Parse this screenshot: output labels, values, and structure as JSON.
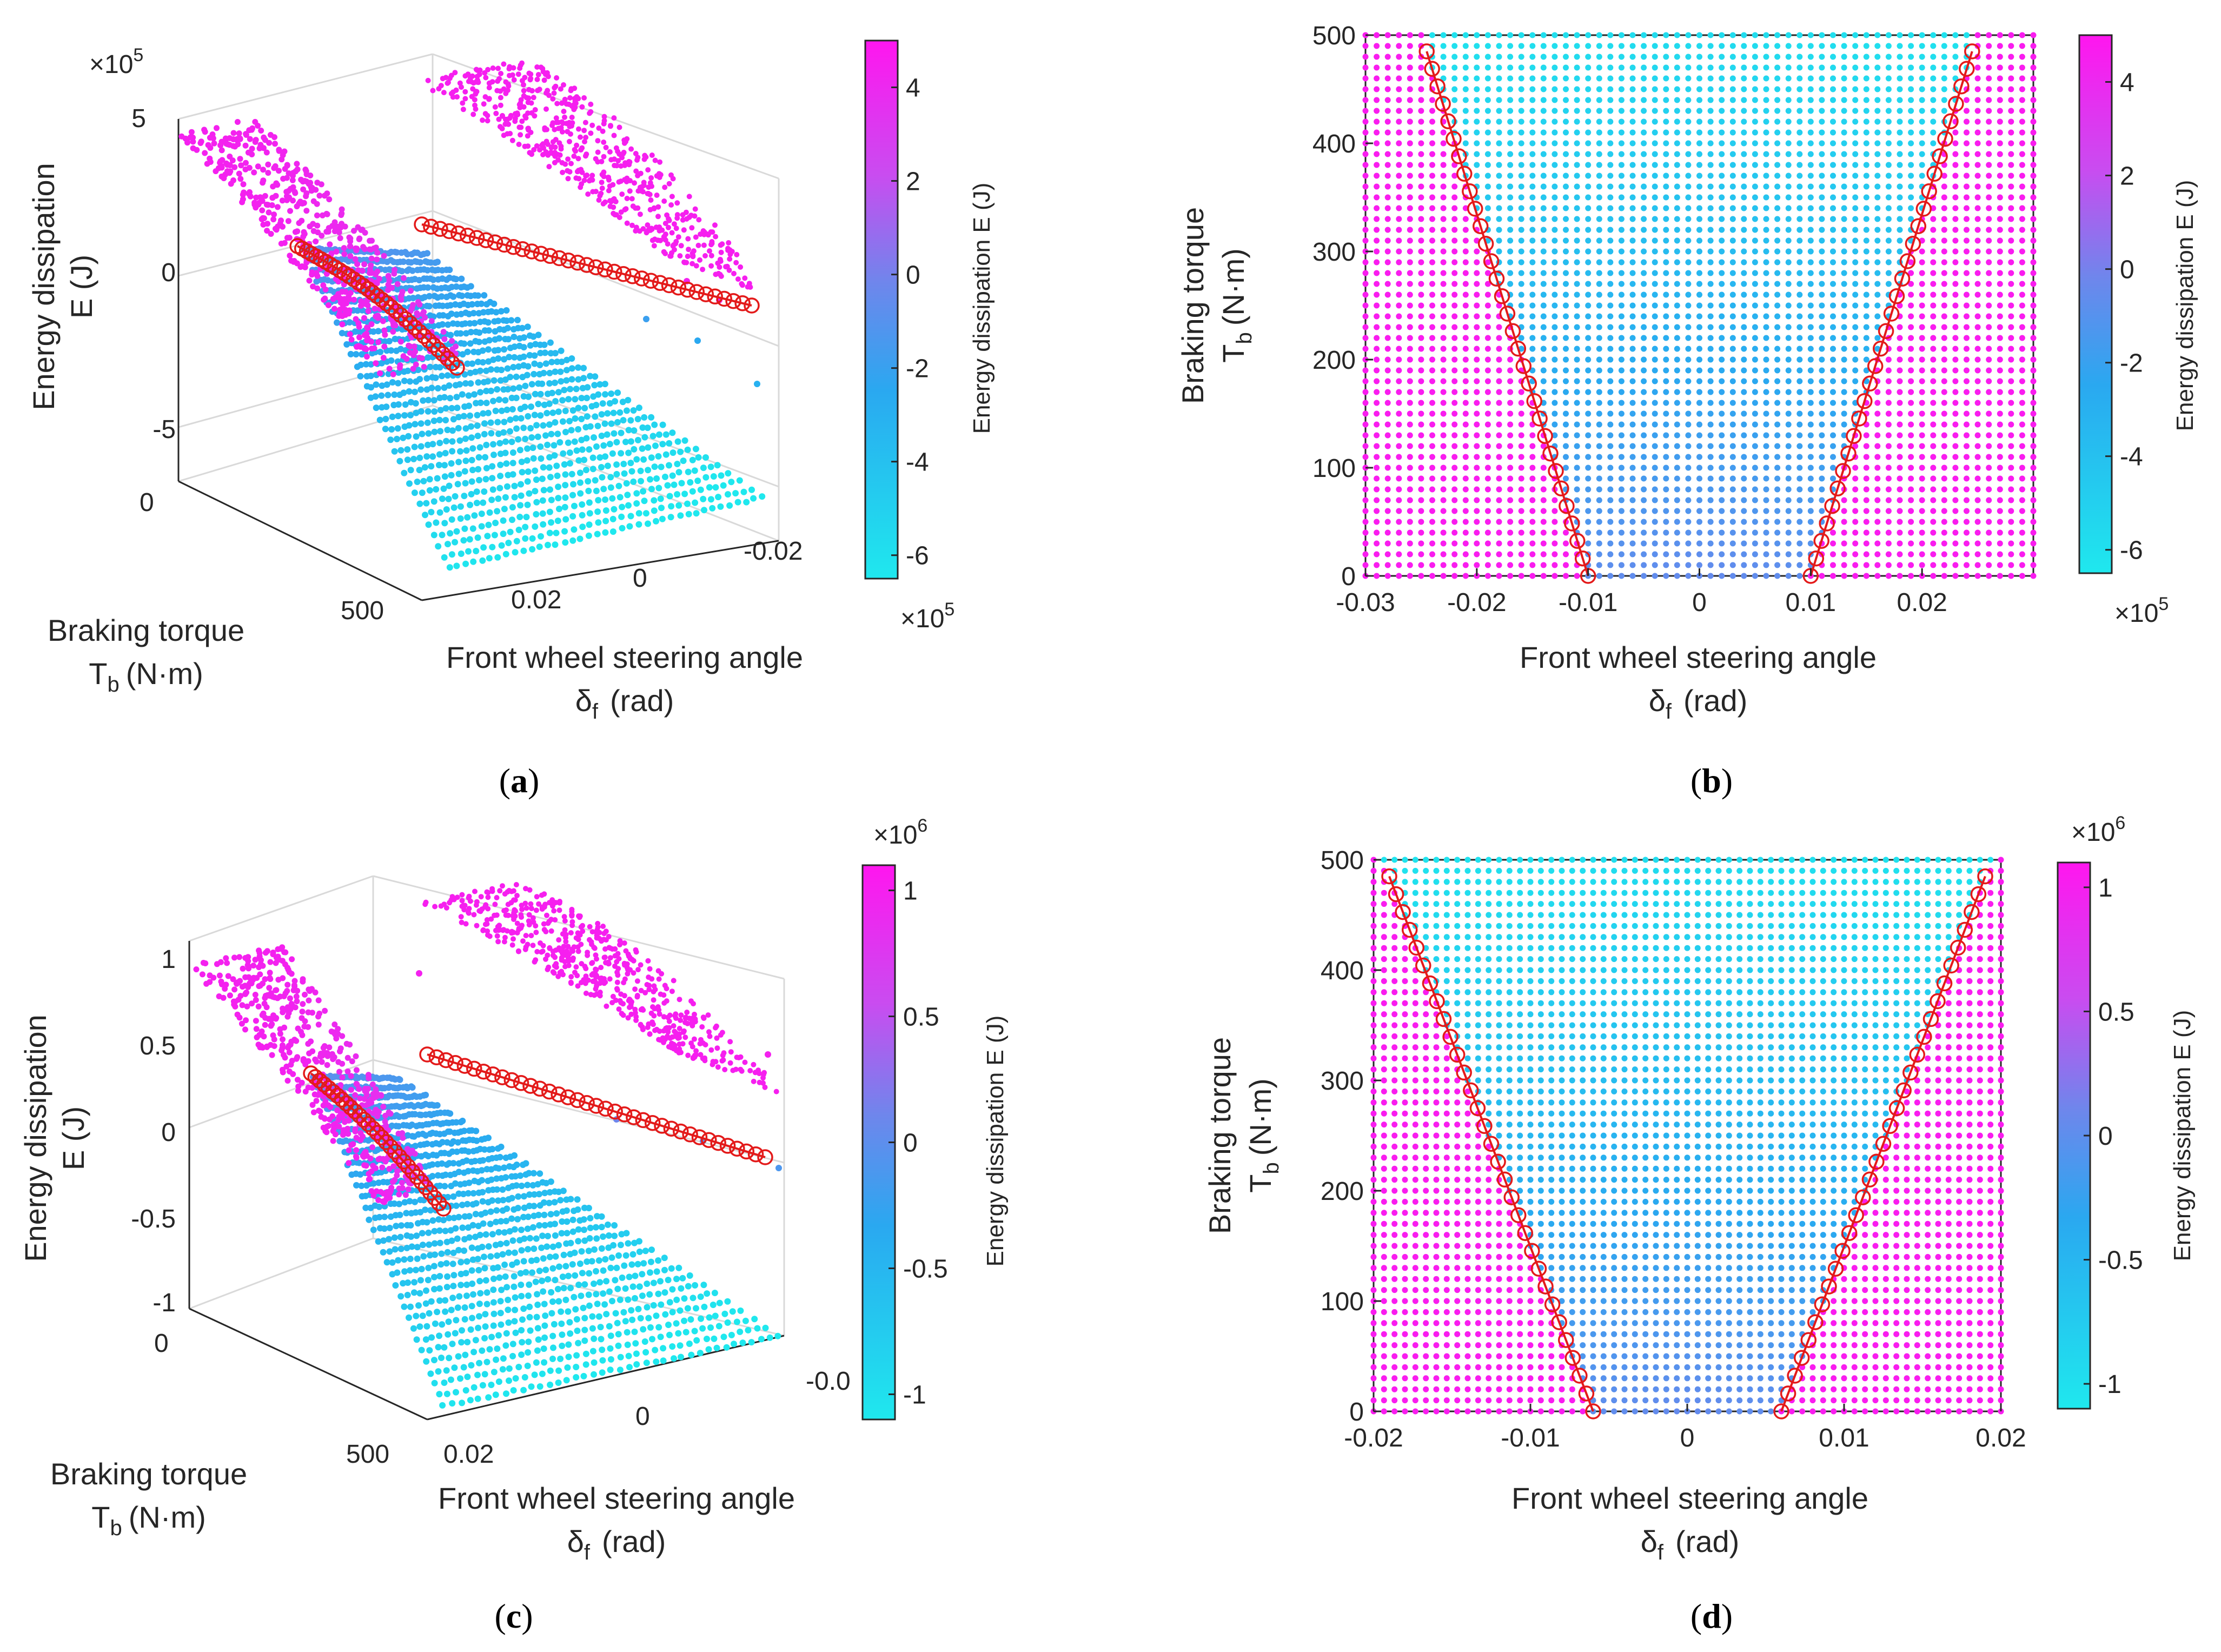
{
  "figure": {
    "panels": [
      {
        "tag": "(a)",
        "tag_open": "(",
        "tag_letter": "a",
        "tag_close": ")"
      },
      {
        "tag": "(b)",
        "tag_open": "(",
        "tag_letter": "b",
        "tag_close": ")"
      },
      {
        "tag": "(c)",
        "tag_open": "(",
        "tag_letter": "c",
        "tag_close": ")"
      },
      {
        "tag": "(d)",
        "tag_open": "(",
        "tag_letter": "d",
        "tag_close": ")"
      }
    ]
  },
  "chart_data": [
    {
      "id": "a",
      "type": "scatter",
      "view": "3d",
      "xlabel_line1": "Front wheel steering angle",
      "xlabel_sym": "δ",
      "xlabel_sub": "f",
      "xlabel_unit": "(rad)",
      "ylabel_line1": "Braking torque",
      "ylabel_sym": "T",
      "ylabel_sub": "b",
      "ylabel_unit": "(N·m)",
      "zlabel_line1": "Energy dissipation",
      "zlabel_line2": "E (J)",
      "z_ticks": [
        "5",
        "0",
        "-5"
      ],
      "z_exponent": "×10",
      "z_exp": "5",
      "y_ticks": [
        "0",
        "500"
      ],
      "x_ticks": [
        "0.02",
        "0",
        "-0.02"
      ],
      "zlim": [
        -6.5,
        5
      ],
      "colorbar": {
        "label": "Energy dissipation E (J)",
        "ticks": [
          "4",
          "2",
          "0",
          "-2",
          "-4",
          "-6"
        ],
        "tick_values": [
          4,
          2,
          0,
          -2,
          -4,
          -6
        ],
        "range": [
          -6.5,
          5
        ],
        "exponent": "×10",
        "exp": "5",
        "exponent_position": "bottom"
      },
      "colors": {
        "low": "#1fe8ee",
        "mid": "#2f9cf0",
        "high": "#ff16ef"
      }
    },
    {
      "id": "b",
      "type": "scatter",
      "view": "2d",
      "xlabel_line1": "Front wheel steering angle",
      "xlabel_sym": "δ",
      "xlabel_sub": "f",
      "xlabel_unit": "(rad)",
      "ylabel_line1": "Braking torque",
      "ylabel_sym": "T",
      "ylabel_sub": "b",
      "ylabel_unit": "(N·m)",
      "x_ticks": [
        "-0.03",
        "-0.02",
        "-0.01",
        "0",
        "0.01",
        "0.02"
      ],
      "x_tick_values": [
        -0.03,
        -0.02,
        -0.01,
        0,
        0.01,
        0.02
      ],
      "y_ticks": [
        "0",
        "100",
        "200",
        "300",
        "400",
        "500"
      ],
      "y_tick_values": [
        0,
        100,
        200,
        300,
        400,
        500
      ],
      "xlim": [
        -0.03,
        0.03
      ],
      "ylim": [
        0,
        500
      ],
      "boundary_left": {
        "x": [
          -0.01,
          -0.0245
        ],
        "y": [
          0,
          485
        ]
      },
      "boundary_right": {
        "x": [
          0.01,
          0.0245
        ],
        "y": [
          0,
          485
        ]
      },
      "colorbar": {
        "label": "Energy dissipation E (J)",
        "ticks": [
          "4",
          "2",
          "0",
          "-2",
          "-4",
          "-6"
        ],
        "tick_values": [
          4,
          2,
          0,
          -2,
          -4,
          -6
        ],
        "range": [
          -6.5,
          5
        ],
        "exponent": "×10",
        "exp": "5",
        "exponent_position": "bottom"
      }
    },
    {
      "id": "c",
      "type": "scatter",
      "view": "3d",
      "xlabel_line1": "Front wheel steering angle",
      "xlabel_sym": "δ",
      "xlabel_sub": "f",
      "xlabel_unit": "(rad)",
      "ylabel_line1": "Braking torque",
      "ylabel_sym": "T",
      "ylabel_sub": "b",
      "ylabel_unit": "(N·m)",
      "zlabel_line1": "Energy dissipation",
      "zlabel_line2": "E (J)",
      "z_ticks": [
        "1",
        "0.5",
        "0",
        "-0.5",
        "-1"
      ],
      "y_ticks": [
        "0",
        "500"
      ],
      "x_ticks": [
        "0.02",
        "0",
        "-0.0"
      ],
      "zlim": [
        -1.1,
        1.1
      ],
      "colorbar": {
        "label": "Energy dissipation E (J)",
        "ticks": [
          "1",
          "0.5",
          "0",
          "-0.5",
          "-1"
        ],
        "tick_values": [
          1,
          0.5,
          0,
          -0.5,
          -1
        ],
        "range": [
          -1.1,
          1.1
        ],
        "exponent": "×10",
        "exp": "6",
        "exponent_position": "top"
      }
    },
    {
      "id": "d",
      "type": "scatter",
      "view": "2d",
      "xlabel_line1": "Front wheel steering angle",
      "xlabel_sym": "δ",
      "xlabel_sub": "f",
      "xlabel_unit": "(rad)",
      "ylabel_line1": "Braking torque",
      "ylabel_sym": "T",
      "ylabel_sub": "b",
      "ylabel_unit": "(N·m)",
      "x_ticks": [
        "-0.02",
        "-0.01",
        "0",
        "0.01",
        "0.02"
      ],
      "x_tick_values": [
        -0.02,
        -0.01,
        0,
        0.01,
        0.02
      ],
      "y_ticks": [
        "0",
        "100",
        "200",
        "300",
        "400",
        "500"
      ],
      "y_tick_values": [
        0,
        100,
        200,
        300,
        400,
        500
      ],
      "xlim": [
        -0.02,
        0.02
      ],
      "ylim": [
        0,
        500
      ],
      "boundary_left": {
        "x": [
          -0.006,
          -0.019
        ],
        "y": [
          0,
          485
        ]
      },
      "boundary_right": {
        "x": [
          0.006,
          0.019
        ],
        "y": [
          0,
          485
        ]
      },
      "colorbar": {
        "label": "Energy dissipation E (J)",
        "ticks": [
          "1",
          "0.5",
          "0",
          "-0.5",
          "-1"
        ],
        "tick_values": [
          1,
          0.5,
          0,
          -0.5,
          -1
        ],
        "range": [
          -1.1,
          1.1
        ],
        "exponent": "×10",
        "exp": "6",
        "exponent_position": "top"
      }
    }
  ]
}
